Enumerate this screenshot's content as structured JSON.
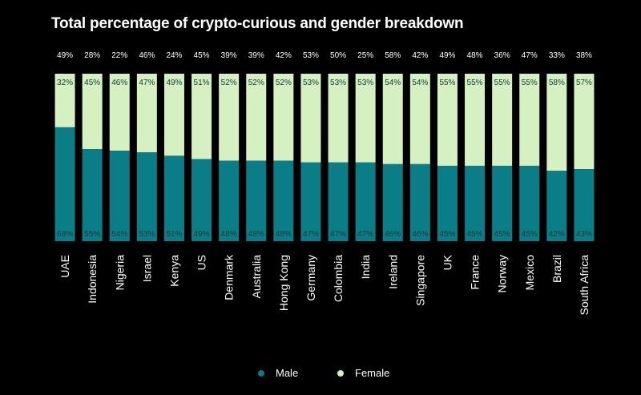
{
  "title": "Total percentage of crypto-curious and gender breakdown",
  "colors": {
    "male": "#0a7d86",
    "female": "#d5f1c1",
    "background": "#000000",
    "text": "#ffffff",
    "bar_label": "#0f3b3c"
  },
  "legend": {
    "male": "Male",
    "female": "Female"
  },
  "chart_data": {
    "type": "bar",
    "stacked": true,
    "normalized": true,
    "title": "Total percentage of crypto-curious and gender breakdown",
    "xlabel": "",
    "ylabel": "",
    "ylim": [
      0,
      100
    ],
    "grid": false,
    "legend_position": "bottom",
    "categories": [
      "UAE",
      "Indonesia",
      "Nigeria",
      "Israel",
      "Kenya",
      "US",
      "Denmark",
      "Australia",
      "Hong Kong",
      "Germany",
      "Colombia",
      "India",
      "Ireland",
      "Singapore",
      "UK",
      "France",
      "Norway",
      "Mexico",
      "Brazil",
      "South Africa"
    ],
    "totals": [
      "49%",
      "28%",
      "22%",
      "46%",
      "24%",
      "45%",
      "39%",
      "39%",
      "42%",
      "53%",
      "50%",
      "25%",
      "58%",
      "42%",
      "49%",
      "48%",
      "36%",
      "47%",
      "33%",
      "38%"
    ],
    "series": [
      {
        "name": "Male",
        "values": [
          68,
          55,
          54,
          53,
          51,
          49,
          48,
          48,
          48,
          47,
          47,
          47,
          46,
          46,
          45,
          45,
          45,
          45,
          42,
          43
        ]
      },
      {
        "name": "Female",
        "values": [
          32,
          45,
          46,
          47,
          49,
          51,
          52,
          52,
          52,
          53,
          53,
          53,
          54,
          54,
          55,
          55,
          55,
          55,
          58,
          57
        ]
      }
    ]
  }
}
